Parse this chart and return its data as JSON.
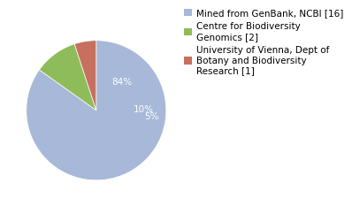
{
  "labels": [
    "Mined from GenBank, NCBI [16]",
    "Centre for Biodiversity\nGenomics [2]",
    "University of Vienna, Dept of\nBotany and Biodiversity\nResearch [1]"
  ],
  "values": [
    84,
    10,
    5
  ],
  "pct_labels": [
    "84%",
    "10%",
    "5%"
  ],
  "colors": [
    "#a8b8d8",
    "#8fbc5a",
    "#c87060"
  ],
  "background_color": "#ffffff",
  "startangle": 90,
  "pct_fontsize": 7.5,
  "legend_fontsize": 7.5,
  "pct_radii": [
    0.55,
    0.68,
    0.8
  ]
}
